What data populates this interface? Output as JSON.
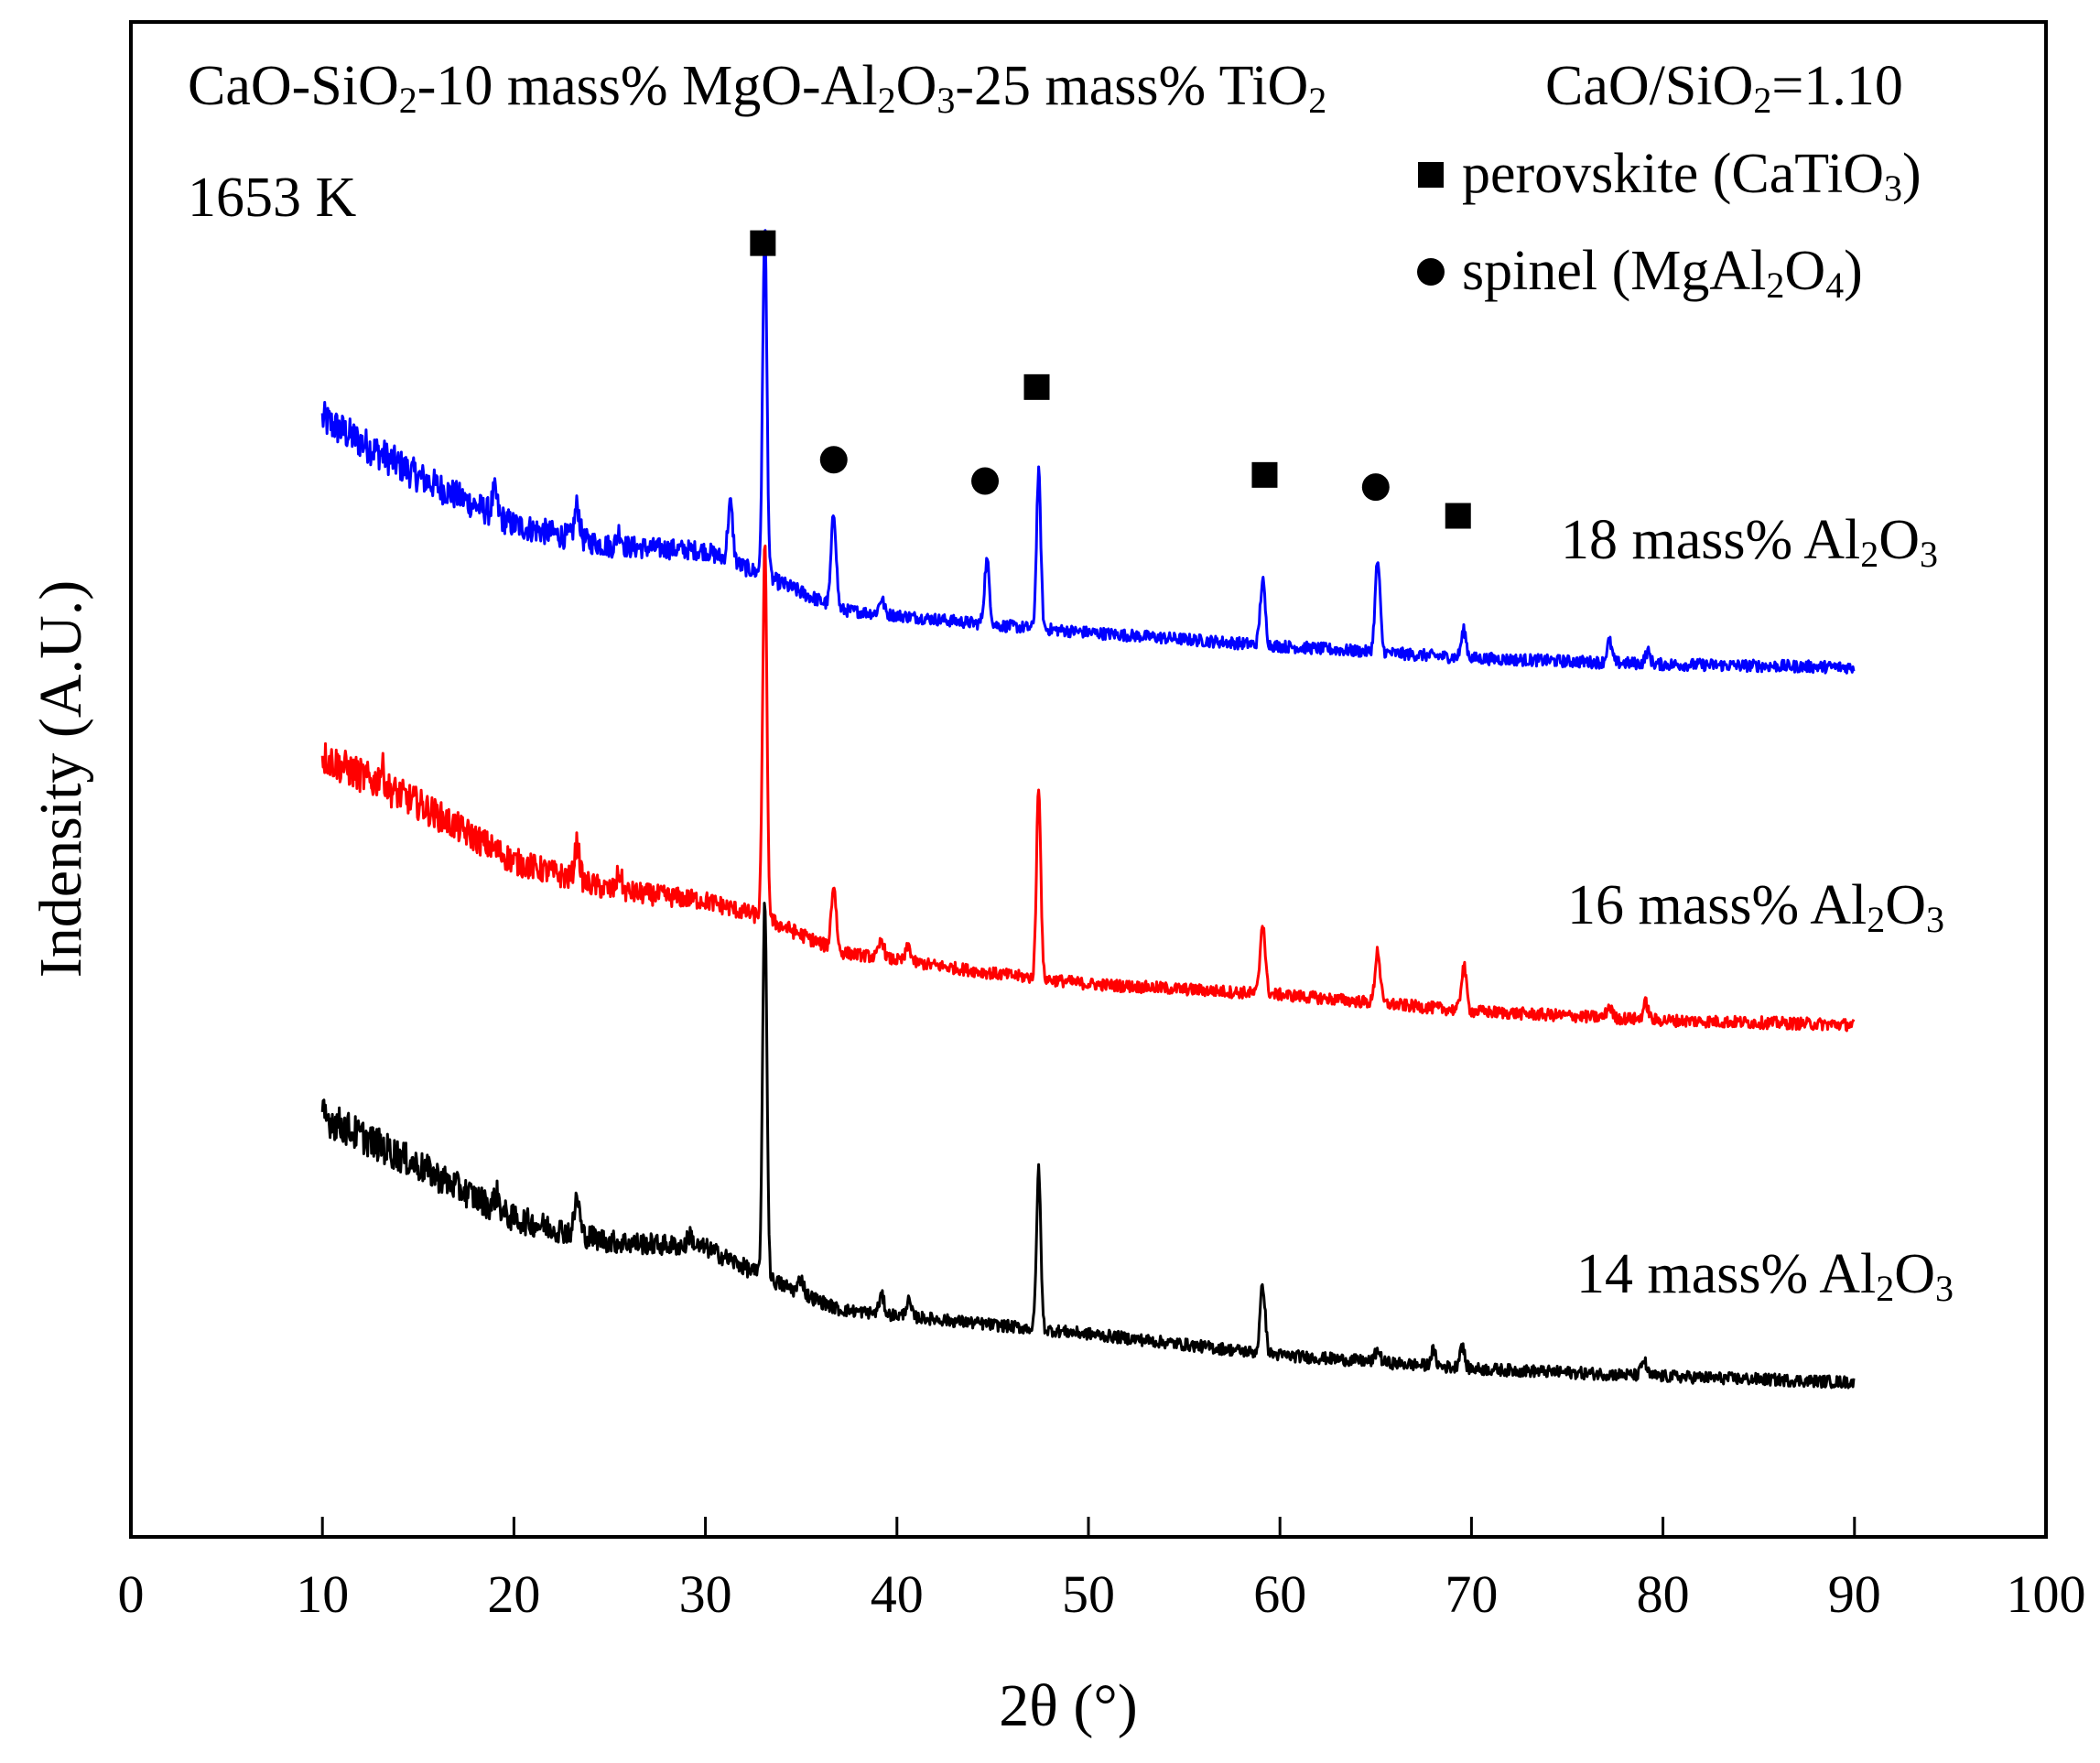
{
  "chart_data": {
    "type": "line",
    "title": "",
    "xlabel": "2θ (°)",
    "ylabel": "Indensity (A.U.)",
    "xlim": [
      0,
      100
    ],
    "ylim": [
      0,
      1
    ],
    "xticks": [
      0,
      10,
      20,
      30,
      40,
      50,
      60,
      70,
      80,
      90,
      100
    ],
    "grid": false,
    "annotations": {
      "composition": [
        {
          "t": "CaO-SiO",
          "s": false
        },
        {
          "t": "2",
          "s": true
        },
        {
          "t": "-10 mass% MgO-Al",
          "s": false
        },
        {
          "t": "2",
          "s": true
        },
        {
          "t": "O",
          "s": false
        },
        {
          "t": "3",
          "s": true
        },
        {
          "t": "-25 mass% TiO",
          "s": false
        },
        {
          "t": "2",
          "s": true
        }
      ],
      "basicity": [
        {
          "t": "CaO/SiO",
          "s": false
        },
        {
          "t": "2",
          "s": true
        },
        {
          "t": "=1.10",
          "s": false
        }
      ],
      "temperature": "1653 K"
    },
    "legend": {
      "placement": "top-right",
      "entries": [
        {
          "marker": "square",
          "parts": [
            {
              "t": "perovskite (CaTiO",
              "s": false
            },
            {
              "t": "3",
              "s": true
            },
            {
              "t": ")",
              "s": false
            }
          ]
        },
        {
          "marker": "circle",
          "parts": [
            {
              "t": "spinel (MgAl",
              "s": false
            },
            {
              "t": "2",
              "s": true
            },
            {
              "t": "O",
              "s": false
            },
            {
              "t": "4",
              "s": true
            },
            {
              "t": ")",
              "s": false
            }
          ]
        }
      ]
    },
    "phase_markers": [
      {
        "phase": "perovskite",
        "marker": "square",
        "x": 33.0,
        "y": 0.854
      },
      {
        "phase": "spinel",
        "marker": "circle",
        "x": 36.7,
        "y": 0.711
      },
      {
        "phase": "spinel",
        "marker": "circle",
        "x": 44.6,
        "y": 0.697
      },
      {
        "phase": "perovskite",
        "marker": "square",
        "x": 47.3,
        "y": 0.759
      },
      {
        "phase": "perovskite",
        "marker": "square",
        "x": 59.2,
        "y": 0.701
      },
      {
        "phase": "spinel",
        "marker": "circle",
        "x": 65.0,
        "y": 0.693
      },
      {
        "phase": "perovskite",
        "marker": "square",
        "x": 69.3,
        "y": 0.674
      }
    ],
    "series": [
      {
        "name": "18 mass% Al2O3",
        "label_parts": [
          {
            "t": "18 mass% Al",
            "s": false
          },
          {
            "t": "2",
            "s": true
          },
          {
            "t": "O",
            "s": false
          },
          {
            "t": "3",
            "s": true
          }
        ],
        "color": "#0000ff",
        "baseline": [
          [
            10,
            0.738
          ],
          [
            15,
            0.7
          ],
          [
            20,
            0.668
          ],
          [
            25,
            0.654
          ],
          [
            30,
            0.651
          ],
          [
            33,
            0.635
          ],
          [
            37,
            0.612
          ],
          [
            45,
            0.602
          ],
          [
            50,
            0.597
          ],
          [
            60,
            0.588
          ],
          [
            70,
            0.58
          ],
          [
            80,
            0.576
          ],
          [
            90,
            0.574
          ]
        ],
        "peaks": [
          [
            19.0,
            0.015
          ],
          [
            23.3,
            0.022
          ],
          [
            25.5,
            0.01
          ],
          [
            31.3,
            0.038
          ],
          [
            33.1,
            0.23
          ],
          [
            36.7,
            0.062
          ],
          [
            39.2,
            0.01
          ],
          [
            44.7,
            0.042
          ],
          [
            47.4,
            0.103
          ],
          [
            59.1,
            0.042
          ],
          [
            65.1,
            0.06
          ],
          [
            69.6,
            0.018
          ],
          [
            77.2,
            0.014
          ],
          [
            79.2,
            0.008
          ]
        ]
      },
      {
        "name": "16 mass% Al2O3",
        "label_parts": [
          {
            "t": "16 mass% Al",
            "s": false
          },
          {
            "t": "2",
            "s": true
          },
          {
            "t": "O",
            "s": false
          },
          {
            "t": "3",
            "s": true
          }
        ],
        "color": "#ff0000",
        "baseline": [
          [
            10,
            0.515
          ],
          [
            15,
            0.484
          ],
          [
            20,
            0.446
          ],
          [
            25,
            0.427
          ],
          [
            30,
            0.42
          ],
          [
            33,
            0.409
          ],
          [
            37,
            0.386
          ],
          [
            45,
            0.372
          ],
          [
            50,
            0.365
          ],
          [
            60,
            0.358
          ],
          [
            70,
            0.347
          ],
          [
            80,
            0.341
          ],
          [
            90,
            0.338
          ]
        ],
        "peaks": [
          [
            13.1,
            0.012
          ],
          [
            23.3,
            0.024
          ],
          [
            25.5,
            0.012
          ],
          [
            33.1,
            0.245
          ],
          [
            36.7,
            0.042
          ],
          [
            39.2,
            0.012
          ],
          [
            40.6,
            0.01
          ],
          [
            47.4,
            0.128
          ],
          [
            59.1,
            0.047
          ],
          [
            65.1,
            0.035
          ],
          [
            69.6,
            0.03
          ],
          [
            77.2,
            0.008
          ],
          [
            79.1,
            0.011
          ]
        ]
      },
      {
        "name": "14 mass% Al2O3",
        "label_parts": [
          {
            "t": "14 mass% Al",
            "s": false
          },
          {
            "t": "2",
            "s": true
          },
          {
            "t": "O",
            "s": false
          },
          {
            "t": "3",
            "s": true
          }
        ],
        "color": "#000000",
        "baseline": [
          [
            10,
            0.278
          ],
          [
            15,
            0.245
          ],
          [
            20,
            0.21
          ],
          [
            25,
            0.195
          ],
          [
            30,
            0.191
          ],
          [
            33,
            0.172
          ],
          [
            37,
            0.15
          ],
          [
            45,
            0.14
          ],
          [
            50,
            0.134
          ],
          [
            60,
            0.12
          ],
          [
            70,
            0.111
          ],
          [
            80,
            0.106
          ],
          [
            90,
            0.102
          ]
        ],
        "peaks": [
          [
            19.1,
            0.01
          ],
          [
            23.3,
            0.024
          ],
          [
            29.2,
            0.008
          ],
          [
            33.1,
            0.25
          ],
          [
            35.0,
            0.01
          ],
          [
            39.2,
            0.012
          ],
          [
            40.6,
            0.01
          ],
          [
            47.4,
            0.105
          ],
          [
            59.1,
            0.045
          ],
          [
            65.1,
            0.008
          ],
          [
            68.0,
            0.01
          ],
          [
            69.5,
            0.015
          ],
          [
            79.0,
            0.01
          ]
        ]
      }
    ]
  }
}
